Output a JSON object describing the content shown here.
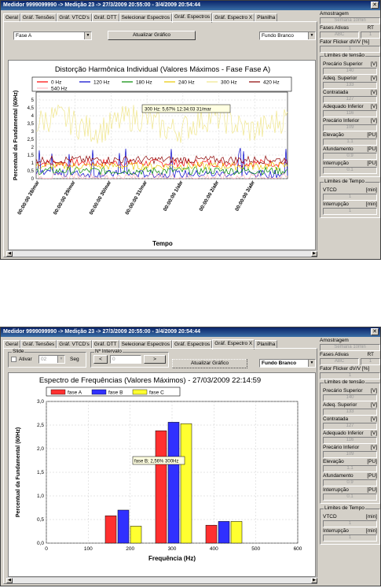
{
  "window1": {
    "title": "Medidor 9999099990 -> Medição 23 -> 27/3/2009 20:55:00 - 3/4/2009 20:54:44",
    "tabs": [
      "Geral",
      "Gráf. Tensões",
      "Gráf. VTCD's",
      "Gráf. DTT",
      "Selecionar Espectros",
      "Gráf. Espectros",
      "Gráf. Espectro X",
      "Planilha"
    ],
    "active_tab": "Gráf. Espectros",
    "phase_select": "Fase A",
    "update_button": "Atualizar Gráfico",
    "background_select": "Fundo Branco",
    "chart_data": {
      "type": "line",
      "title": "Distorção Harmônica Individual (Valores Máximos - Fase Fase A)",
      "xlabel": "Tempo",
      "ylabel": "Percentual da Fundamental (60Hz)",
      "ylim": [
        0,
        5.5
      ],
      "yticks": [
        "0",
        "0,5",
        "1",
        "1,5",
        "2",
        "2,5",
        "3",
        "3,5",
        "4",
        "4,5",
        "5"
      ],
      "xticks": [
        "00:00:00 28/mar",
        "00:00:00 29/mar",
        "00:00:00 30/mar",
        "00:00:00 31/mar",
        "00:00:00 1/abr",
        "00:00:00 2/abr",
        "00:00:00 3/abr"
      ],
      "legend": [
        "0 Hz",
        "120 Hz",
        "180 Hz",
        "240 Hz",
        "300 Hz",
        "420 Hz",
        "540 Hz"
      ],
      "legend_position": "top",
      "colors": [
        "#ff0000",
        "#0000cc",
        "#008800",
        "#e8c800",
        "#f0e68c",
        "#8b0000",
        "#ffb6c1"
      ],
      "approx_levels": [
        1.0,
        0.3,
        0.5,
        0.8,
        3.5,
        1.2,
        0.1
      ],
      "tooltip": "300 Hz: 5,67% 12:34:03 31/mar"
    }
  },
  "window2": {
    "title": "Medidor 9999099990 -> Medição 23 -> 27/3/2009 20:55:00 - 3/4/2009 20:54:44",
    "tabs": [
      "Geral",
      "Gráf. Tensões",
      "Gráf. VTCD's",
      "Gráf. DTT",
      "Selecionar Espectros",
      "Gráf. Espectros",
      "Gráf. Espectro X",
      "Planilha"
    ],
    "active_tab": "Gráf. Espectro X",
    "slide_group": "Slide",
    "activate_label": "Ativar",
    "slide_value": "02",
    "seg_label": "Seg",
    "interval_group": "Nº Intervalo",
    "interval_value": "0",
    "prev_button": "<",
    "next_button": ">",
    "update_button": "Atualizar Gráfico",
    "background_select": "Fundo Branco",
    "chart_data": {
      "type": "bar",
      "title": "Espectro de Frequências (Valores Máximos) - 27/03/2009 22:14:59",
      "xlabel": "Frequência (Hz)",
      "ylabel": "Percentual da Fundamental (60Hz)",
      "categories": [
        180,
        300,
        420
      ],
      "series": [
        {
          "name": "fase A",
          "values": [
            0.58,
            2.38,
            0.38
          ],
          "color": "#ff3030"
        },
        {
          "name": "fase B",
          "values": [
            0.7,
            2.56,
            0.46
          ],
          "color": "#3030ff"
        },
        {
          "name": "fase C",
          "values": [
            0.36,
            2.53,
            0.46
          ],
          "color": "#ffff30"
        }
      ],
      "xlim": [
        0,
        600
      ],
      "ylim": [
        0,
        3
      ],
      "xticks": [
        "0",
        "100",
        "200",
        "300",
        "400",
        "500",
        "600"
      ],
      "yticks": [
        "0,0",
        "0,5",
        "1,0",
        "1,5",
        "2,0",
        "2,5",
        "3,0"
      ],
      "legend_position": "top",
      "tooltip": "fase B; 2,56% 300Hz"
    }
  },
  "sidebar": {
    "amostragem_label": "Amostragem",
    "amostragem_value": "Semana 10min",
    "fases_label": "Fases Ativas",
    "fases_rt": "RT",
    "fases_value1": "ABC",
    "fases_value2": "1",
    "flicker_label": "Fator Flicker",
    "flicker_unit": "dV/V [%]",
    "flicker_value": "1",
    "limits_title": "Limites de tensão",
    "limits": [
      {
        "label": "Precário Superior",
        "unit": "[V]",
        "value": "140"
      },
      {
        "label": "Adeq. Superior",
        "unit": "[V]",
        "value": "133"
      },
      {
        "label": "Contratada",
        "unit": "[V]",
        "value": "127"
      },
      {
        "label": "Adequado Inferior",
        "unit": "[V]",
        "value": "116"
      },
      {
        "label": "Precário Inferior",
        "unit": "[V]",
        "value": "109"
      },
      {
        "label": "Elevação",
        "unit": "[PU]",
        "value": "1.1"
      },
      {
        "label": "Afundamento",
        "unit": "[PU]",
        "value": "0.9"
      },
      {
        "label": "Interrupção",
        "unit": "[PU]",
        "value": "0.1"
      }
    ],
    "time_title": "Limites de Tempo",
    "vtcd_label": "VTCD",
    "vtcd_unit": "[min]",
    "vtcd_value": "1",
    "interruption_label": "Interrupção",
    "interruption_unit": "[min]",
    "interruption_value": "1"
  }
}
